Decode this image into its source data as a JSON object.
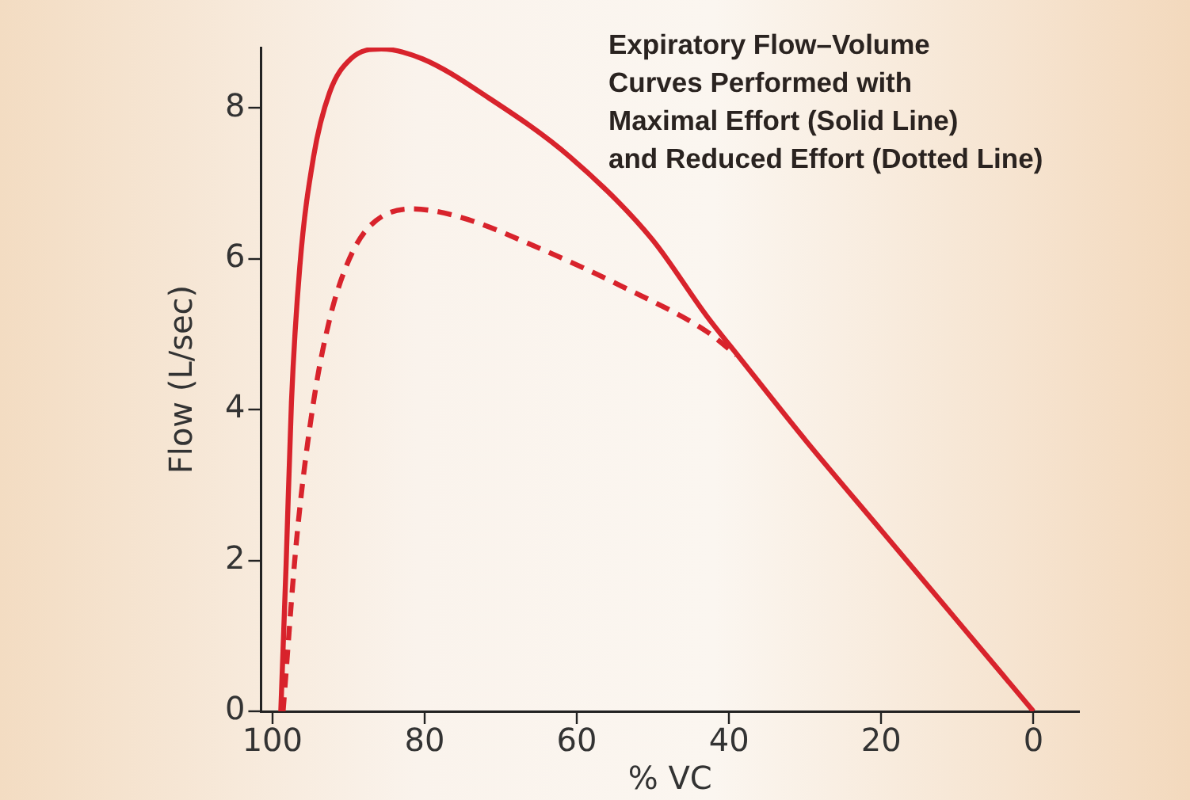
{
  "chart_data": {
    "type": "line",
    "title": "Expiratory Flow–Volume\nCurves Performed with\nMaximal Effort (Solid Line)\nand Reduced Effort (Dotted Line)",
    "xlabel": "% VC",
    "ylabel": "Flow (L/sec)",
    "series": [
      {
        "color": "#d8232c",
        "line_style": "solid",
        "x": [
          98.9,
          98.2,
          97.5,
          96.4,
          94.6,
          92.5,
          89.7,
          85.7,
          80.3,
          71.7,
          60.9,
          50.2,
          43,
          38.7,
          30,
          20,
          10,
          0
        ],
        "values": [
          0,
          1.95,
          4.1,
          5.9,
          7.35,
          8.2,
          8.65,
          8.78,
          8.65,
          8.14,
          7.35,
          6.27,
          5.25,
          4.7,
          3.6,
          2.4,
          1.2,
          0
        ]
      },
      {
        "color": "#d8232c",
        "line_style": "dashed",
        "x": [
          98.6,
          96.8,
          94.6,
          92.5,
          90.3,
          87.5,
          81.7,
          75.3,
          64.5,
          53.8,
          43,
          39
        ],
        "values": [
          0,
          2.3,
          4.1,
          5.19,
          5.9,
          6.4,
          6.66,
          6.55,
          6.12,
          5.62,
          5.04,
          4.72
        ]
      }
    ],
    "xlim": [
      101.5,
      -6
    ],
    "xticks": [
      100,
      80,
      60,
      40,
      20,
      0
    ],
    "ylim": [
      0,
      8.8
    ],
    "yticks": [
      0,
      2,
      4,
      6,
      8
    ],
    "grid": false,
    "legend": false,
    "marker": "none"
  }
}
